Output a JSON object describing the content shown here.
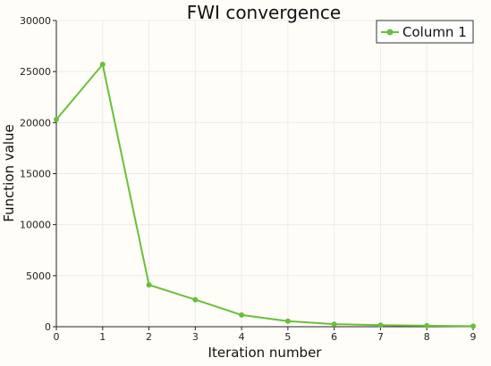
{
  "chart_data": {
    "type": "line",
    "title": "FWI convergence",
    "xlabel": "Iteration number",
    "ylabel": "Function value",
    "xlim": [
      0,
      9
    ],
    "ylim": [
      0,
      30000
    ],
    "x_ticks": [
      "0",
      "1",
      "2",
      "3",
      "4",
      "5",
      "6",
      "7",
      "8",
      "9"
    ],
    "y_ticks": [
      "0",
      "5000",
      "10000",
      "15000",
      "20000",
      "25000",
      "30000"
    ],
    "grid": true,
    "legend_position": "top-right",
    "series": [
      {
        "name": "Column 1",
        "color": "#6abf3a",
        "x": [
          0,
          1,
          2,
          3,
          4,
          5,
          6,
          7,
          8,
          9
        ],
        "values": [
          20300,
          25700,
          4100,
          2650,
          1150,
          550,
          250,
          150,
          100,
          50
        ]
      }
    ]
  }
}
